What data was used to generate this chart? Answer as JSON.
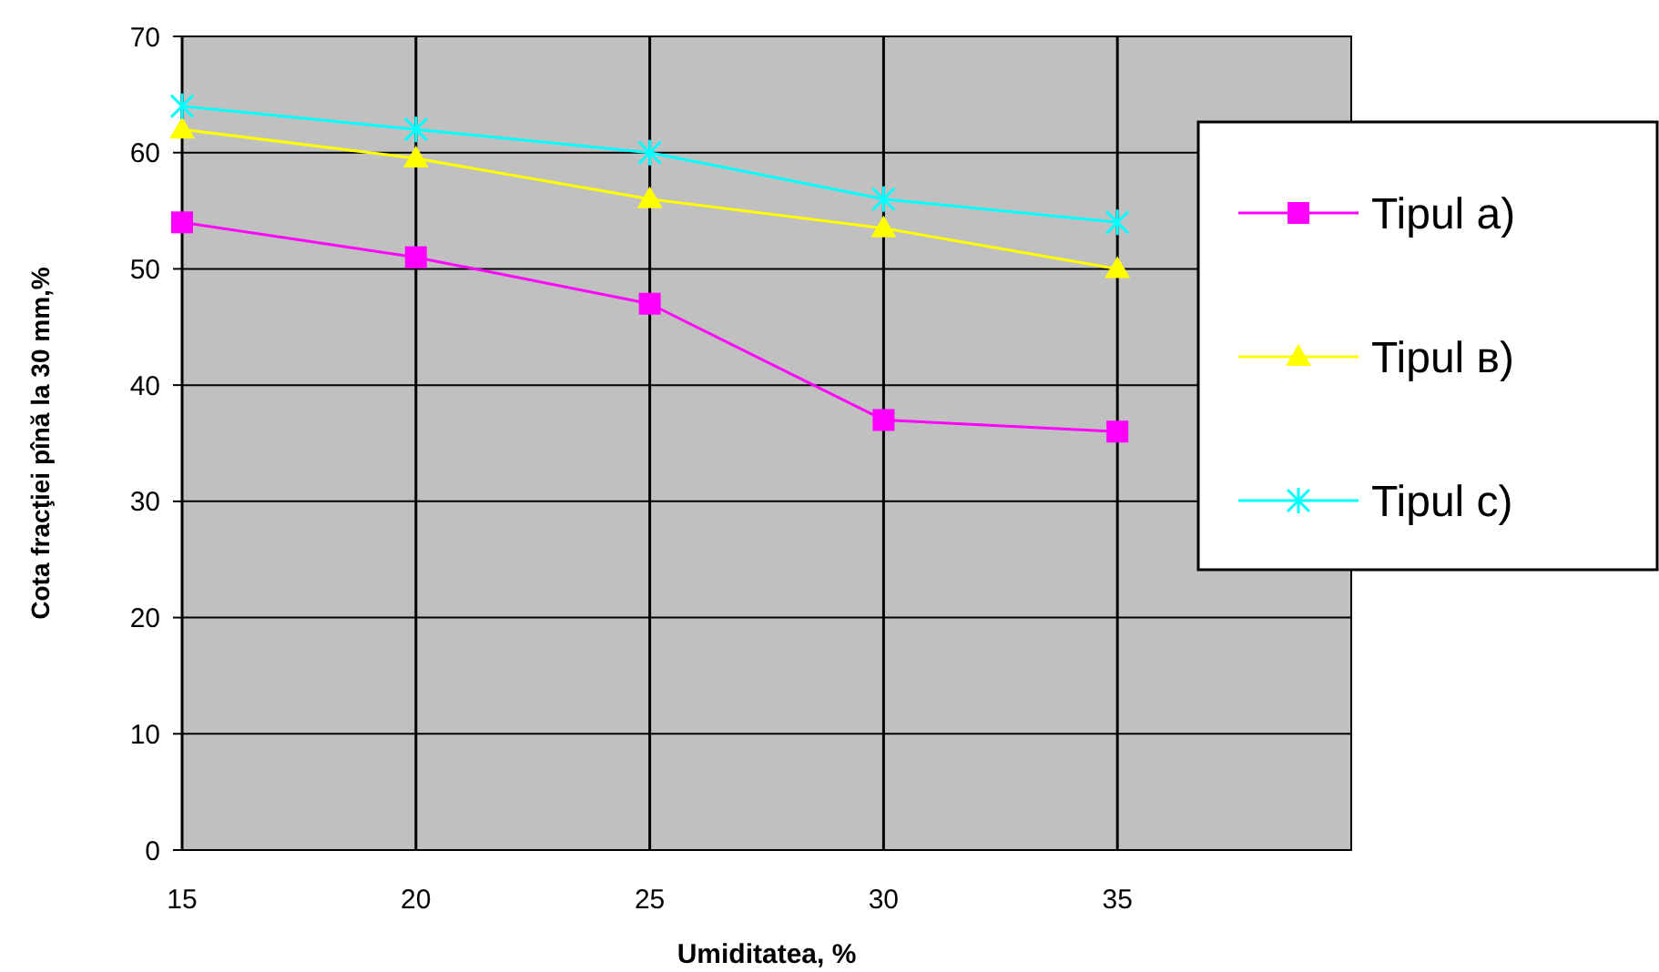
{
  "chart_data": {
    "type": "line",
    "xlabel": "Umiditatea, %",
    "ylabel": "Cota fracţiei pînă la 30  mm,%",
    "x": [
      15,
      20,
      25,
      30,
      35
    ],
    "xlim": [
      15,
      40
    ],
    "xticks": [
      15,
      20,
      25,
      30,
      35
    ],
    "ylim": [
      0,
      70
    ],
    "yticks": [
      0,
      10,
      20,
      30,
      40,
      50,
      60,
      70
    ],
    "grid": true,
    "legend": "right",
    "series": [
      {
        "name": "Tipul  a)",
        "color": "#ff00ff",
        "marker": "square",
        "values": [
          54,
          51,
          47,
          37,
          36
        ]
      },
      {
        "name": "Tipul  в)",
        "color": "#ffff00",
        "marker": "triangle",
        "values": [
          62,
          59.5,
          56,
          53.5,
          50
        ]
      },
      {
        "name": "Tipul  c)",
        "color": "#00ffff",
        "marker": "cross",
        "values": [
          64,
          62,
          60,
          56,
          54
        ]
      }
    ]
  }
}
